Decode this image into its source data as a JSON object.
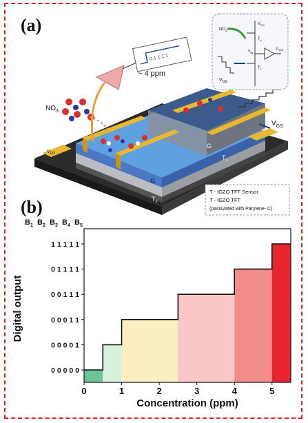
{
  "figure": {
    "panel_a_label": "(a)",
    "panel_b_label": "(b)",
    "panel_a": {
      "labels": {
        "no3_molecule": "NO",
        "no3_sub": "3",
        "readout_ppm": "~ 4 ppm",
        "readout_digits": "0 1 1 1 1",
        "vgs": "V",
        "vgs_sub": "GS",
        "vdd": "V",
        "vdd_sub": "DD",
        "g_top": "G",
        "t1_label": "T",
        "t1_sub": "1",
        "g_mid": "G",
        "ts_label": "T",
        "ts_sub": "s"
      },
      "inset_circuit": {
        "no2_label": "NO",
        "no2_sub": "3",
        "vdd": "V",
        "vdd_sub": "DD",
        "ts": "T",
        "ts_sub": "s",
        "vin": "V",
        "vin_sub": "IN",
        "vout": "V",
        "vout_sub": "OUT",
        "t1": "T",
        "t1_sub": "1",
        "vgs": "V",
        "vgs_sub": "GS"
      },
      "legend": {
        "line1": "T - IGZO TFT Sensor",
        "line2": "T - IGZO TFT",
        "line3": "(passivated with Parylene- C)"
      },
      "colors": {
        "substrate": "#2b2b2b",
        "electrode": "#e8b830",
        "channel_blue": "#4a90d9",
        "passivation": "#8a8f9a",
        "layer_grey": "#b9bcc2"
      }
    }
  },
  "chart_data": {
    "type": "step",
    "xlabel": "Concentration (ppm)",
    "ylabel": "Digital output",
    "bit_header": [
      "B",
      "B",
      "B",
      "B",
      "B"
    ],
    "bit_header_subs": [
      "1",
      "2",
      "3",
      "4",
      "5"
    ],
    "x_ticks": [
      0,
      1,
      2,
      3,
      4,
      5
    ],
    "xlim": [
      0,
      5.5
    ],
    "y_categories": [
      "00000",
      "00001",
      "00011",
      "00111",
      "01111",
      "11111"
    ],
    "y_tick_labels": [
      "0 0 0 0 0",
      "0 0 0 0 1",
      "0 0 0 1 1",
      "0 0 1 1 1",
      "0 1 1 1 1",
      "1 1 1 1 1"
    ],
    "steps": [
      {
        "x_start": 0.0,
        "x_end": 0.5,
        "level": 0,
        "color": "#6fc39a"
      },
      {
        "x_start": 0.5,
        "x_end": 1.0,
        "level": 1,
        "color": "#d8f0dc"
      },
      {
        "x_start": 1.0,
        "x_end": 2.5,
        "level": 2,
        "color": "#fbeec2"
      },
      {
        "x_start": 2.5,
        "x_end": 4.0,
        "level": 3,
        "color": "#f9c7c7"
      },
      {
        "x_start": 4.0,
        "x_end": 5.0,
        "level": 4,
        "color": "#f28b8b"
      },
      {
        "x_start": 5.0,
        "x_end": 5.5,
        "level": 5,
        "color": "#e8242e"
      }
    ]
  }
}
